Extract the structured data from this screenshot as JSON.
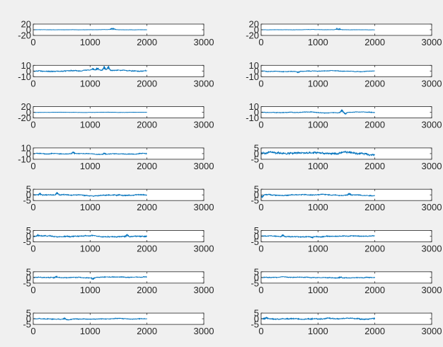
{
  "figure": {
    "background": "#f0f0f0",
    "axes_background": "#ffffff",
    "line_color": "#0072bd",
    "layout": "8 rows x 2 columns of subplots"
  },
  "chart_data": [
    {
      "type": "line",
      "subplot": 1,
      "title": "",
      "xlabel": "",
      "ylabel": "",
      "xlim": [
        0,
        3000
      ],
      "ylim": [
        -20,
        20
      ],
      "xticks": [
        "0",
        "1000",
        "2000",
        "3000"
      ],
      "yticks": [
        "20",
        "0",
        "-20"
      ],
      "x_range": [
        0,
        2000
      ],
      "baseline": 0,
      "noise": 0.6,
      "grid": false,
      "events": [
        {
          "x": 1380,
          "amp": 4
        },
        {
          "x": 1420,
          "amp": 3
        }
      ]
    },
    {
      "type": "line",
      "subplot": 2,
      "title": "",
      "xlabel": "",
      "ylabel": "",
      "xlim": [
        0,
        3000
      ],
      "ylim": [
        -20,
        20
      ],
      "xticks": [
        "0",
        "1000",
        "2000",
        "3000"
      ],
      "yticks": [
        "20",
        "0",
        "-20"
      ],
      "x_range": [
        0,
        2000
      ],
      "baseline": 0,
      "noise": 0.6,
      "grid": false,
      "events": [
        {
          "x": 1330,
          "amp": 4
        },
        {
          "x": 1380,
          "amp": 3
        }
      ]
    },
    {
      "type": "line",
      "subplot": 3,
      "title": "",
      "xlabel": "",
      "ylabel": "",
      "xlim": [
        0,
        3000
      ],
      "ylim": [
        -10,
        10
      ],
      "xticks": [
        "0",
        "1000",
        "2000",
        "3000"
      ],
      "yticks": [
        "10",
        "0",
        "-10"
      ],
      "x_range": [
        0,
        2000
      ],
      "baseline": 0,
      "noise": 1.2,
      "grid": false,
      "events": [
        {
          "x": 1050,
          "amp": 3
        },
        {
          "x": 1130,
          "amp": 4
        },
        {
          "x": 1250,
          "amp": 8
        },
        {
          "x": 1320,
          "amp": 8
        }
      ]
    },
    {
      "type": "line",
      "subplot": 4,
      "title": "",
      "xlabel": "",
      "ylabel": "",
      "xlim": [
        0,
        3000
      ],
      "ylim": [
        -10,
        10
      ],
      "xticks": [
        "0",
        "1000",
        "2000",
        "3000"
      ],
      "yticks": [
        "10",
        "0",
        "-10"
      ],
      "x_range": [
        0,
        2000
      ],
      "baseline": 0,
      "noise": 0.8,
      "grid": false,
      "events": [
        {
          "x": 650,
          "amp": -3
        }
      ]
    },
    {
      "type": "line",
      "subplot": 5,
      "title": "",
      "xlabel": "",
      "ylabel": "",
      "xlim": [
        0,
        3000
      ],
      "ylim": [
        -20,
        20
      ],
      "xticks": [
        "0",
        "1000",
        "2000",
        "3000"
      ],
      "yticks": [
        "20",
        "0",
        "-20"
      ],
      "x_range": [
        0,
        2000
      ],
      "baseline": 0,
      "noise": 0.6,
      "grid": false,
      "events": []
    },
    {
      "type": "line",
      "subplot": 6,
      "title": "",
      "xlabel": "",
      "ylabel": "",
      "xlim": [
        0,
        3000
      ],
      "ylim": [
        -10,
        10
      ],
      "xticks": [
        "0",
        "1000",
        "2000",
        "3000"
      ],
      "yticks": [
        "10",
        "0",
        "-10"
      ],
      "x_range": [
        0,
        2000
      ],
      "baseline": 0,
      "noise": 0.8,
      "grid": false,
      "events": [
        {
          "x": 1420,
          "amp": 6
        },
        {
          "x": 1480,
          "amp": -4
        }
      ]
    },
    {
      "type": "line",
      "subplot": 7,
      "title": "",
      "xlabel": "",
      "ylabel": "",
      "xlim": [
        0,
        3000
      ],
      "ylim": [
        -10,
        10
      ],
      "xticks": [
        "0",
        "1000",
        "2000",
        "3000"
      ],
      "yticks": [
        "10",
        "0",
        "-10"
      ],
      "x_range": [
        0,
        2000
      ],
      "baseline": 0,
      "noise": 1.0,
      "grid": false,
      "events": [
        {
          "x": 700,
          "amp": 3
        },
        {
          "x": 1250,
          "amp": 3
        }
      ]
    },
    {
      "type": "line",
      "subplot": 8,
      "title": "",
      "xlabel": "",
      "ylabel": "",
      "xlim": [
        0,
        3000
      ],
      "ylim": [
        -5,
        5
      ],
      "xticks": [
        "0",
        "1000",
        "2000",
        "3000"
      ],
      "yticks": [
        "5",
        "0",
        "-5"
      ],
      "x_range": [
        0,
        2000
      ],
      "baseline": 0,
      "noise": 1.3,
      "grid": false,
      "events": []
    },
    {
      "type": "line",
      "subplot": 9,
      "title": "",
      "xlabel": "",
      "ylabel": "",
      "xlim": [
        0,
        3000
      ],
      "ylim": [
        -5,
        5
      ],
      "xticks": [
        "0",
        "1000",
        "2000",
        "3000"
      ],
      "yticks": [
        "5",
        "0",
        "-5"
      ],
      "x_range": [
        0,
        2000
      ],
      "baseline": 0,
      "noise": 0.6,
      "grid": false,
      "events": [
        {
          "x": 120,
          "amp": 2
        },
        {
          "x": 420,
          "amp": 2.5
        }
      ]
    },
    {
      "type": "line",
      "subplot": 10,
      "title": "",
      "xlabel": "",
      "ylabel": "",
      "xlim": [
        0,
        3000
      ],
      "ylim": [
        -5,
        5
      ],
      "xticks": [
        "0",
        "1000",
        "2000",
        "3000"
      ],
      "yticks": [
        "5",
        "0",
        "-5"
      ],
      "x_range": [
        0,
        2000
      ],
      "baseline": 0,
      "noise": 0.6,
      "grid": false,
      "events": [
        {
          "x": 20,
          "amp": -3
        },
        {
          "x": 1550,
          "amp": 2
        }
      ]
    },
    {
      "type": "line",
      "subplot": 11,
      "title": "",
      "xlabel": "",
      "ylabel": "",
      "xlim": [
        0,
        3000
      ],
      "ylim": [
        -5,
        5
      ],
      "xticks": [
        "0",
        "1000",
        "2000",
        "3000"
      ],
      "yticks": [
        "5",
        "0",
        "-5"
      ],
      "x_range": [
        0,
        2000
      ],
      "baseline": 0,
      "noise": 0.7,
      "grid": false,
      "events": [
        {
          "x": 80,
          "amp": 1.5
        },
        {
          "x": 1650,
          "amp": 2
        }
      ]
    },
    {
      "type": "line",
      "subplot": 12,
      "title": "",
      "xlabel": "",
      "ylabel": "",
      "xlim": [
        0,
        3000
      ],
      "ylim": [
        -5,
        5
      ],
      "xticks": [
        "0",
        "1000",
        "2000",
        "3000"
      ],
      "yticks": [
        "5",
        "0",
        "-5"
      ],
      "x_range": [
        0,
        2000
      ],
      "baseline": 0,
      "noise": 0.6,
      "grid": false,
      "events": [
        {
          "x": 380,
          "amp": 2
        },
        {
          "x": 900,
          "amp": -1.5
        }
      ]
    },
    {
      "type": "line",
      "subplot": 13,
      "title": "",
      "xlabel": "",
      "ylabel": "",
      "xlim": [
        0,
        3000
      ],
      "ylim": [
        -5,
        5
      ],
      "xticks": [
        "0",
        "1000",
        "2000",
        "3000"
      ],
      "yticks": [
        "5",
        "0",
        "-5"
      ],
      "x_range": [
        0,
        2000
      ],
      "baseline": 0,
      "noise": 0.5,
      "grid": false,
      "events": [
        {
          "x": 400,
          "amp": 1.5
        },
        {
          "x": 1050,
          "amp": -2
        }
      ]
    },
    {
      "type": "line",
      "subplot": 14,
      "title": "",
      "xlabel": "",
      "ylabel": "",
      "xlim": [
        0,
        3000
      ],
      "ylim": [
        -5,
        5
      ],
      "xticks": [
        "0",
        "1000",
        "2000",
        "3000"
      ],
      "yticks": [
        "5",
        "0",
        "-5"
      ],
      "x_range": [
        0,
        2000
      ],
      "baseline": 0,
      "noise": 0.5,
      "grid": false,
      "events": [
        {
          "x": 1400,
          "amp": 1
        }
      ]
    },
    {
      "type": "line",
      "subplot": 15,
      "title": "",
      "xlabel": "",
      "ylabel": "",
      "xlim": [
        0,
        3000
      ],
      "ylim": [
        -5,
        5
      ],
      "xticks": [
        "0",
        "1000",
        "2000",
        "3000"
      ],
      "yticks": [
        "5",
        "0",
        "-5"
      ],
      "x_range": [
        0,
        2000
      ],
      "baseline": 0,
      "noise": 0.5,
      "grid": false,
      "events": [
        {
          "x": 550,
          "amp": 1.5
        }
      ]
    },
    {
      "type": "line",
      "subplot": 16,
      "title": "",
      "xlabel": "",
      "ylabel": "",
      "xlim": [
        0,
        3000
      ],
      "ylim": [
        -5,
        5
      ],
      "xticks": [
        "0",
        "1000",
        "2000",
        "3000"
      ],
      "yticks": [
        "5",
        "0",
        "-5"
      ],
      "x_range": [
        0,
        2000
      ],
      "baseline": 0,
      "noise": 0.7,
      "grid": false,
      "events": [
        {
          "x": 100,
          "amp": 1.5
        }
      ]
    }
  ]
}
